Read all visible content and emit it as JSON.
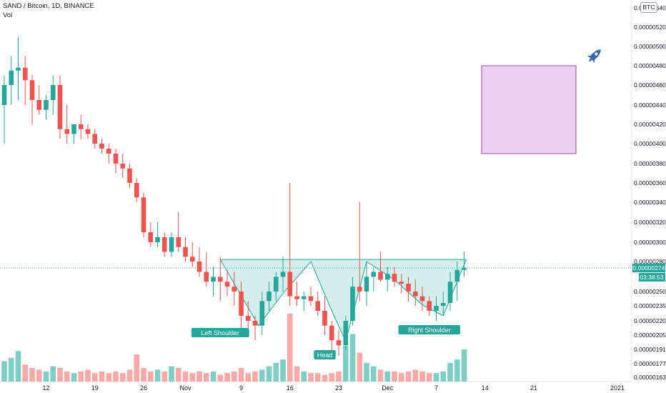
{
  "header": {
    "title": "SAND / Bitcoin, 1D, BINANCE",
    "volume_label": "Vol"
  },
  "currency_badge": "BTC",
  "price_tag": {
    "price": "0.00000274",
    "countdown": "03:38:53"
  },
  "colors": {
    "up": "#26a69a",
    "down": "#ef5350",
    "up_vol": "#7fcdc5",
    "down_vol": "#f7a9a7",
    "pattern_fill": "#cdece7",
    "pattern_line": "#26a69a",
    "box_fill": "#ebd2f3",
    "box_border": "#a0469c"
  },
  "icons": {
    "rocket": "rocket-icon"
  },
  "chart_data": {
    "type": "candlestick",
    "symbol": "SAND / Bitcoin",
    "interval": "1D",
    "exchange": "BINANCE",
    "y_axis": {
      "ticks": [
        "0.00000163",
        "0.00000177",
        "0.00000191",
        "0.00000205",
        "0.00000220",
        "0.00000235",
        "0.00000250",
        "0.00000280",
        "0.00000300",
        "0.00000320",
        "0.00000340",
        "0.00000360",
        "0.00000380",
        "0.00000400",
        "0.00000420",
        "0.00000440",
        "0.00000460",
        "0.00000480",
        "0.00000500",
        "0.00000520",
        "0.00000540"
      ],
      "tick_values": [
        163,
        177,
        191,
        205,
        220,
        235,
        250,
        280,
        300,
        320,
        340,
        360,
        380,
        400,
        420,
        440,
        460,
        480,
        500,
        520,
        540
      ],
      "unit_scale": "1e-8 BTC"
    },
    "x_axis": {
      "tick_labels": [
        "12",
        "19",
        "26",
        "Nov",
        "9",
        "16",
        "23",
        "Dec",
        "7",
        "14",
        "21",
        "2021"
      ],
      "tick_day_index": [
        6,
        13,
        20,
        26,
        34,
        41,
        48,
        55,
        62,
        69,
        76,
        88
      ]
    },
    "candles": [
      [
        440,
        470,
        400,
        460
      ],
      [
        460,
        490,
        440,
        475
      ],
      [
        475,
        510,
        445,
        478
      ],
      [
        478,
        490,
        440,
        465
      ],
      [
        465,
        470,
        420,
        445
      ],
      [
        445,
        460,
        430,
        435
      ],
      [
        435,
        450,
        425,
        445
      ],
      [
        445,
        470,
        430,
        460
      ],
      [
        460,
        470,
        405,
        415
      ],
      [
        415,
        440,
        400,
        410
      ],
      [
        410,
        420,
        400,
        420
      ],
      [
        420,
        430,
        405,
        415
      ],
      [
        415,
        420,
        405,
        410
      ],
      [
        410,
        415,
        395,
        400
      ],
      [
        400,
        405,
        390,
        395
      ],
      [
        395,
        400,
        380,
        390
      ],
      [
        390,
        395,
        370,
        380
      ],
      [
        380,
        390,
        365,
        375
      ],
      [
        375,
        380,
        355,
        360
      ],
      [
        360,
        365,
        340,
        345
      ],
      [
        345,
        350,
        305,
        310
      ],
      [
        310,
        320,
        295,
        300
      ],
      [
        300,
        320,
        295,
        305
      ],
      [
        305,
        310,
        285,
        290
      ],
      [
        290,
        310,
        285,
        305
      ],
      [
        305,
        330,
        290,
        295
      ],
      [
        295,
        305,
        280,
        285
      ],
      [
        285,
        300,
        275,
        280
      ],
      [
        280,
        295,
        265,
        270
      ],
      [
        270,
        290,
        255,
        260
      ],
      [
        260,
        275,
        245,
        265
      ],
      [
        265,
        285,
        240,
        260
      ],
      [
        260,
        272,
        245,
        255
      ],
      [
        255,
        270,
        235,
        250
      ],
      [
        250,
        260,
        210,
        225
      ],
      [
        225,
        240,
        210,
        220
      ],
      [
        220,
        225,
        200,
        215
      ],
      [
        215,
        250,
        205,
        240
      ],
      [
        240,
        260,
        230,
        250
      ],
      [
        250,
        270,
        240,
        265
      ],
      [
        265,
        285,
        250,
        270
      ],
      [
        270,
        360,
        235,
        245
      ],
      [
        245,
        260,
        235,
        242
      ],
      [
        242,
        250,
        230,
        245
      ],
      [
        245,
        255,
        235,
        240
      ],
      [
        240,
        250,
        225,
        230
      ],
      [
        230,
        245,
        205,
        215
      ],
      [
        215,
        220,
        190,
        200
      ],
      [
        200,
        210,
        185,
        195
      ],
      [
        195,
        225,
        190,
        220
      ],
      [
        220,
        265,
        215,
        255
      ],
      [
        255,
        340,
        240,
        250
      ],
      [
        250,
        280,
        235,
        265
      ],
      [
        265,
        275,
        250,
        270
      ],
      [
        270,
        290,
        260,
        262
      ],
      [
        262,
        275,
        250,
        268
      ],
      [
        268,
        275,
        255,
        260
      ],
      [
        260,
        268,
        248,
        258
      ],
      [
        258,
        265,
        240,
        250
      ],
      [
        250,
        262,
        235,
        245
      ],
      [
        245,
        255,
        230,
        240
      ],
      [
        240,
        245,
        225,
        230
      ],
      [
        230,
        245,
        220,
        235
      ],
      [
        235,
        250,
        225,
        238
      ],
      [
        238,
        270,
        230,
        260
      ],
      [
        260,
        280,
        240,
        272
      ],
      [
        272,
        290,
        265,
        274
      ]
    ],
    "volumes": [
      12,
      14,
      18,
      10,
      8,
      7,
      6,
      9,
      8,
      6,
      5,
      6,
      7,
      5,
      6,
      5,
      6,
      5,
      7,
      16,
      8,
      6,
      7,
      6,
      9,
      8,
      6,
      5,
      6,
      5,
      6,
      4,
      5,
      6,
      8,
      5,
      6,
      7,
      9,
      11,
      13,
      40,
      9,
      6,
      5,
      5,
      4,
      5,
      6,
      21,
      28,
      17,
      11,
      9,
      7,
      6,
      6,
      5,
      6,
      7,
      6,
      5,
      5,
      6,
      11,
      13,
      19
    ],
    "annotations": {
      "labels": [
        "Left Shoulder",
        "Head",
        "Right Shoulder"
      ],
      "box_price_range": [
        390,
        480
      ]
    },
    "last_price": 274
  }
}
